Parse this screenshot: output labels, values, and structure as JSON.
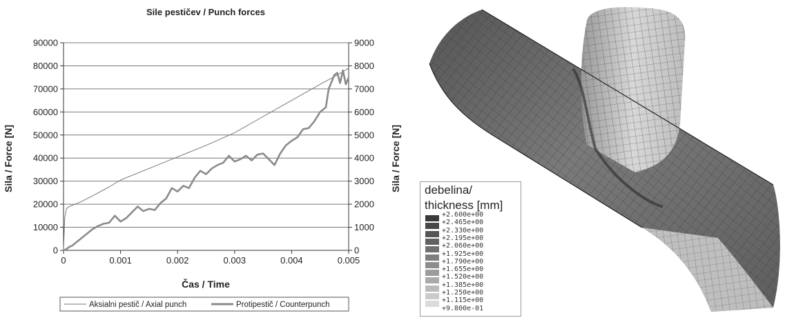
{
  "chart_data": {
    "type": "line",
    "title": "Sile pestičev / Punch forces",
    "xlabel": "Čas / Time",
    "ylabel_left": "Sila / Force [N]",
    "ylabel_right": "Sila / Force [N]",
    "xlim": [
      0,
      0.005
    ],
    "ylim_left": [
      0,
      90000
    ],
    "ylim_right": [
      0,
      9000
    ],
    "x_ticks": [
      "0",
      "0.001",
      "0.002",
      "0.003",
      "0.004",
      "0.005"
    ],
    "y_ticks_left": [
      "0",
      "10000",
      "20000",
      "30000",
      "40000",
      "50000",
      "60000",
      "70000",
      "80000",
      "90000"
    ],
    "y_ticks_right": [
      "0",
      "1000",
      "2000",
      "3000",
      "4000",
      "5000",
      "6000",
      "7000",
      "8000",
      "9000"
    ],
    "grid": "horizontal",
    "legend_position": "bottom",
    "series": [
      {
        "name": "Aksialni pestič / Axial punch",
        "axis": "left",
        "color": "#777777",
        "x": [
          0,
          2e-05,
          5e-05,
          0.0001,
          0.0003,
          0.0005,
          0.0008,
          0.001,
          0.0015,
          0.002,
          0.0025,
          0.003,
          0.0035,
          0.004,
          0.0045,
          0.0048,
          0.005
        ],
        "y": [
          0,
          14000,
          18000,
          19000,
          21000,
          23500,
          27500,
          30500,
          35500,
          40500,
          45500,
          51000,
          58000,
          65000,
          72000,
          76000,
          79000
        ]
      },
      {
        "name": "Protipestič / Counterpunch",
        "axis": "right",
        "color": "#8a8a8a",
        "x": [
          0,
          5e-05,
          0.0001,
          0.00015,
          0.0002,
          0.0003,
          0.0004,
          0.0005,
          0.0006,
          0.0007,
          0.0008,
          0.0009,
          0.001,
          0.0011,
          0.0012,
          0.0013,
          0.0014,
          0.0015,
          0.0016,
          0.0017,
          0.0018,
          0.0019,
          0.002,
          0.0021,
          0.0022,
          0.0023,
          0.0024,
          0.0025,
          0.0026,
          0.0027,
          0.0028,
          0.0029,
          0.003,
          0.0031,
          0.0032,
          0.0033,
          0.0034,
          0.0035,
          0.0036,
          0.0037,
          0.0038,
          0.0039,
          0.004,
          0.0041,
          0.0042,
          0.0043,
          0.0044,
          0.0045,
          0.0046,
          0.00465,
          0.0047,
          0.00475,
          0.0048,
          0.00485,
          0.0049,
          0.00495,
          0.005
        ],
        "y": [
          0,
          50,
          150,
          200,
          300,
          500,
          700,
          900,
          1050,
          1150,
          1200,
          1500,
          1250,
          1400,
          1650,
          1900,
          1700,
          1800,
          1750,
          2050,
          2250,
          2700,
          2550,
          2800,
          2700,
          3150,
          3450,
          3300,
          3550,
          3700,
          3800,
          4100,
          3850,
          3950,
          4100,
          3900,
          4150,
          4200,
          3950,
          3700,
          4200,
          4550,
          4750,
          4900,
          5250,
          5300,
          5600,
          6000,
          6200,
          7000,
          7300,
          7600,
          7700,
          7250,
          7800,
          7200,
          7500
        ]
      }
    ]
  },
  "fem_legend": {
    "title_line1": "debelina/",
    "title_line2": "thickness  [mm]",
    "ticks": [
      "+2.600e+00",
      "+2.465e+00",
      "+2.330e+00",
      "+2.195e+00",
      "+2.060e+00",
      "+1.925e+00",
      "+1.790e+00",
      "+1.655e+00",
      "+1.520e+00",
      "+1.385e+00",
      "+1.250e+00",
      "+1.115e+00",
      "+9.800e-01"
    ],
    "colors": [
      "#3a3a3a",
      "#474747",
      "#555555",
      "#626262",
      "#707070",
      "#7e7e7e",
      "#8d8d8d",
      "#9c9c9c",
      "#ababab",
      "#bbbbbb",
      "#cbcbcb",
      "#dbdbdb"
    ]
  }
}
